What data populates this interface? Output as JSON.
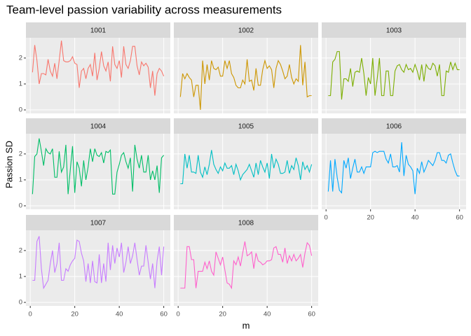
{
  "title": "Team-level passion variability across measurements",
  "x_label": "m",
  "y_label": "Passion SD",
  "chart_data": [
    {
      "type": "line",
      "title": "1001",
      "color": "#F8766D",
      "xlim": [
        -1.95,
        62.95
      ],
      "xticks": [
        0,
        20,
        40,
        60
      ],
      "ylim": [
        -0.135,
        2.78
      ],
      "yticks": [
        0,
        1,
        2
      ],
      "grid": true,
      "x": [
        1,
        2,
        3,
        4,
        5,
        6,
        7,
        8,
        9,
        10,
        11,
        12,
        13,
        14,
        15,
        16,
        17,
        18,
        19,
        20,
        21,
        22,
        23,
        24,
        25,
        26,
        27,
        28,
        29,
        30,
        31,
        32,
        33,
        34,
        35,
        36,
        37,
        38,
        39,
        40,
        41,
        42,
        43,
        44,
        45,
        46,
        47,
        48,
        49,
        50,
        51,
        52,
        53,
        54,
        55,
        56,
        57,
        58,
        59,
        60
      ],
      "values": [
        1.45,
        2.5,
        1.9,
        1.0,
        1.4,
        1.4,
        1.35,
        1.95,
        1.5,
        1.3,
        1.8,
        1.2,
        1.9,
        2.67,
        1.9,
        1.85,
        1.85,
        1.9,
        2.05,
        1.8,
        1.75,
        0.85,
        1.5,
        1.6,
        1.2,
        1.6,
        1.75,
        1.3,
        2.2,
        1.15,
        1.6,
        2.25,
        1.7,
        1.5,
        1.85,
        1.1,
        2.45,
        1.75,
        1.6,
        1.9,
        1.25,
        2.45,
        1.75,
        1.6,
        1.9,
        2.45,
        2.45,
        1.7,
        1.35,
        1.85,
        1.7,
        1.8,
        1.65,
        0.85,
        1.5,
        0.55,
        1.4,
        1.6,
        1.5,
        1.3
      ]
    },
    {
      "type": "line",
      "title": "1002",
      "color": "#CD9600",
      "xlim": [
        -1.95,
        62.95
      ],
      "xticks": [
        0,
        20,
        40,
        60
      ],
      "ylim": [
        -0.135,
        2.78
      ],
      "yticks": [
        0,
        1,
        2
      ],
      "grid": true,
      "x": [
        1,
        2,
        3,
        4,
        5,
        6,
        7,
        8,
        9,
        10,
        11,
        12,
        13,
        14,
        15,
        16,
        17,
        18,
        19,
        20,
        21,
        22,
        23,
        24,
        25,
        26,
        27,
        28,
        29,
        30,
        31,
        32,
        33,
        34,
        35,
        36,
        37,
        38,
        39,
        40,
        41,
        42,
        43,
        44,
        45,
        46,
        47,
        48,
        49,
        50,
        51,
        52,
        53,
        54,
        55,
        56,
        57,
        58,
        59,
        60
      ],
      "values": [
        0.5,
        1.4,
        1.2,
        1.4,
        1.25,
        1.15,
        0.5,
        0.95,
        0.95,
        0.0,
        1.9,
        1.0,
        1.75,
        1.15,
        1.9,
        1.6,
        1.55,
        1.65,
        1.3,
        1.3,
        1.9,
        1.6,
        1.9,
        1.4,
        1.25,
        0.95,
        0.85,
        0.85,
        1.15,
        1.0,
        1.95,
        1.1,
        1.15,
        0.75,
        1.6,
        0.95,
        0.95,
        1.55,
        1.9,
        1.6,
        1.7,
        1.55,
        0.85,
        1.6,
        1.9,
        1.75,
        1.5,
        1.2,
        1.3,
        1.75,
        1.25,
        1.0,
        1.2,
        1.1,
        2.5,
        0.95,
        1.85,
        0.5,
        0.55,
        0.55
      ]
    },
    {
      "type": "line",
      "title": "1003",
      "color": "#7CAE00",
      "xlim": [
        -1.95,
        62.95
      ],
      "xticks": [
        0,
        20,
        40,
        60
      ],
      "ylim": [
        -0.135,
        2.78
      ],
      "yticks": [
        0,
        1,
        2
      ],
      "grid": true,
      "x": [
        1,
        2,
        3,
        4,
        5,
        6,
        7,
        8,
        9,
        10,
        11,
        12,
        13,
        14,
        15,
        16,
        17,
        18,
        19,
        20,
        21,
        22,
        23,
        24,
        25,
        26,
        27,
        28,
        29,
        30,
        31,
        32,
        33,
        34,
        35,
        36,
        37,
        38,
        39,
        40,
        41,
        42,
        43,
        44,
        45,
        46,
        47,
        48,
        49,
        50,
        51,
        52,
        53,
        54,
        55,
        56,
        57,
        58,
        59,
        60
      ],
      "values": [
        0.55,
        0.55,
        1.85,
        1.95,
        2.25,
        2.25,
        0.4,
        1.2,
        1.2,
        1.1,
        1.6,
        0.9,
        1.45,
        1.5,
        1.45,
        2.0,
        1.4,
        0.55,
        1.25,
        1.0,
        2.0,
        0.55,
        1.2,
        2.0,
        0.55,
        0.55,
        1.5,
        1.5,
        0.55,
        0.55,
        1.5,
        1.7,
        1.75,
        1.55,
        1.45,
        1.75,
        1.55,
        1.6,
        1.45,
        1.75,
        1.5,
        1.15,
        1.75,
        1.1,
        1.75,
        1.6,
        1.55,
        1.8,
        1.7,
        1.3,
        1.75,
        0.55,
        0.55,
        1.5,
        1.45,
        1.85,
        1.55,
        1.8,
        1.55,
        1.55
      ]
    },
    {
      "type": "line",
      "title": "1004",
      "color": "#00BE67",
      "xlim": [
        -1.95,
        62.95
      ],
      "xticks": [
        0,
        20,
        40,
        60
      ],
      "ylim": [
        -0.135,
        2.78
      ],
      "yticks": [
        0,
        1,
        2
      ],
      "grid": true,
      "x": [
        1,
        2,
        3,
        4,
        5,
        6,
        7,
        8,
        9,
        10,
        11,
        12,
        13,
        14,
        15,
        16,
        17,
        18,
        19,
        20,
        21,
        22,
        23,
        24,
        25,
        26,
        27,
        28,
        29,
        30,
        31,
        32,
        33,
        34,
        35,
        36,
        37,
        38,
        39,
        40,
        41,
        42,
        43,
        44,
        45,
        46,
        47,
        48,
        49,
        50,
        51,
        52,
        53,
        54,
        55,
        56,
        57,
        58,
        59,
        60
      ],
      "values": [
        0.45,
        1.9,
        2.0,
        2.6,
        2.1,
        1.55,
        2.2,
        2.05,
        2.0,
        2.2,
        1.1,
        1.1,
        2.1,
        1.3,
        1.5,
        2.35,
        0.45,
        1.4,
        2.3,
        0.5,
        1.7,
        1.45,
        0.75,
        1.75,
        1.0,
        1.5,
        2.2,
        1.7,
        2.2,
        1.95,
        1.9,
        2.05,
        1.65,
        2.1,
        2.05,
        2.15,
        0.45,
        0.45,
        1.3,
        1.6,
        1.95,
        2.05,
        1.7,
        1.45,
        1.85,
        0.55,
        2.35,
        1.8,
        1.45,
        1.95,
        1.3,
        1.3,
        1.95,
        1.0,
        1.35,
        1.0,
        1.55,
        0.5,
        1.85,
        1.95
      ]
    },
    {
      "type": "line",
      "title": "1005",
      "color": "#00BFC4",
      "xlim": [
        -1.95,
        62.95
      ],
      "xticks": [
        0,
        20,
        40,
        60
      ],
      "ylim": [
        -0.135,
        2.78
      ],
      "yticks": [
        0,
        1,
        2
      ],
      "grid": true,
      "x": [
        1,
        2,
        3,
        4,
        5,
        6,
        7,
        8,
        9,
        10,
        11,
        12,
        13,
        14,
        15,
        16,
        17,
        18,
        19,
        20,
        21,
        22,
        23,
        24,
        25,
        26,
        27,
        28,
        29,
        30,
        31,
        32,
        33,
        34,
        35,
        36,
        37,
        38,
        39,
        40,
        41,
        42,
        43,
        44,
        45,
        46,
        47,
        48,
        49,
        50,
        51,
        52,
        53,
        54,
        55,
        56,
        57,
        58,
        59,
        60
      ],
      "values": [
        0.85,
        0.85,
        2.0,
        1.45,
        1.95,
        1.3,
        1.3,
        1.25,
        1.95,
        1.3,
        1.1,
        1.5,
        1.2,
        1.6,
        2.15,
        1.6,
        1.4,
        1.25,
        1.5,
        1.35,
        1.65,
        1.45,
        1.45,
        1.55,
        1.2,
        1.6,
        1.35,
        1.0,
        1.2,
        1.3,
        1.4,
        1.6,
        1.35,
        1.1,
        1.65,
        1.2,
        1.75,
        1.5,
        1.3,
        1.65,
        1.05,
        2.0,
        1.45,
        1.8,
        1.6,
        1.25,
        1.25,
        1.3,
        1.75,
        1.25,
        1.55,
        1.4,
        1.85,
        1.55,
        1.0,
        1.7,
        1.4,
        1.55,
        1.3,
        1.6
      ]
    },
    {
      "type": "line",
      "title": "1006",
      "color": "#00A9FF",
      "xlim": [
        -1.95,
        62.95
      ],
      "xticks": [
        0,
        20,
        40,
        60
      ],
      "ylim": [
        -0.135,
        2.78
      ],
      "yticks": [
        0,
        1,
        2
      ],
      "grid": true,
      "x": [
        1,
        2,
        3,
        4,
        5,
        6,
        7,
        8,
        9,
        10,
        11,
        12,
        13,
        14,
        15,
        16,
        17,
        18,
        19,
        20,
        21,
        22,
        23,
        24,
        25,
        26,
        27,
        28,
        29,
        30,
        31,
        32,
        33,
        34,
        35,
        36,
        37,
        38,
        39,
        40,
        41,
        42,
        43,
        44,
        45,
        46,
        47,
        48,
        49,
        50,
        51,
        52,
        53,
        54,
        55,
        56,
        57,
        58,
        59,
        60
      ],
      "values": [
        0.55,
        1.75,
        0.55,
        1.8,
        1.1,
        0.6,
        0.5,
        1.75,
        1.45,
        1.85,
        1.05,
        1.45,
        1.8,
        1.3,
        1.3,
        1.5,
        1.25,
        1.5,
        1.5,
        1.5,
        2.05,
        2.1,
        2.05,
        2.1,
        2.1,
        2.1,
        1.8,
        1.65,
        2.0,
        1.5,
        1.5,
        1.55,
        1.3,
        2.45,
        1.15,
        1.95,
        1.6,
        1.5,
        1.35,
        0.45,
        1.45,
        1.25,
        1.7,
        1.3,
        1.5,
        1.75,
        1.65,
        1.55,
        1.75,
        2.05,
        2.05,
        1.75,
        1.75,
        1.65,
        1.95,
        2.0,
        1.65,
        1.35,
        1.15,
        1.15
      ]
    },
    {
      "type": "line",
      "title": "1007",
      "color": "#C77CFF",
      "xlim": [
        -1.95,
        62.95
      ],
      "xticks": [
        0,
        20,
        40,
        60
      ],
      "ylim": [
        -0.135,
        2.78
      ],
      "yticks": [
        0,
        1,
        2
      ],
      "grid": true,
      "x": [
        1,
        2,
        3,
        4,
        5,
        6,
        7,
        8,
        9,
        10,
        11,
        12,
        13,
        14,
        15,
        16,
        17,
        18,
        19,
        20,
        21,
        22,
        23,
        24,
        25,
        26,
        27,
        28,
        29,
        30,
        31,
        32,
        33,
        34,
        35,
        36,
        37,
        38,
        39,
        40,
        41,
        42,
        43,
        44,
        45,
        46,
        47,
        48,
        49,
        50,
        51,
        52,
        53,
        54,
        55,
        56,
        57,
        58,
        59,
        60
      ],
      "values": [
        0.85,
        0.85,
        2.35,
        2.55,
        1.3,
        0.55,
        0.7,
        0.85,
        1.5,
        2.0,
        1.15,
        1.5,
        2.3,
        0.85,
        0.85,
        1.3,
        1.2,
        1.45,
        1.6,
        1.7,
        2.4,
        2.35,
        1.9,
        1.6,
        0.8,
        1.5,
        0.75,
        1.6,
        0.8,
        0.75,
        1.85,
        0.75,
        1.5,
        0.8,
        2.3,
        1.25,
        2.2,
        1.5,
        2.1,
        1.75,
        2.3,
        1.15,
        1.55,
        2.15,
        1.5,
        1.8,
        2.3,
        1.65,
        1.05,
        1.4,
        1.4,
        2.2,
        1.55,
        0.9,
        1.5,
        0.55,
        1.6,
        2.15,
        1.05,
        2.15
      ]
    },
    {
      "type": "line",
      "title": "1008",
      "color": "#FF61CC",
      "xlim": [
        -1.95,
        62.95
      ],
      "xticks": [
        0,
        20,
        40,
        60
      ],
      "ylim": [
        -0.135,
        2.78
      ],
      "yticks": [
        0,
        1,
        2
      ],
      "grid": true,
      "x": [
        1,
        2,
        3,
        4,
        5,
        6,
        7,
        8,
        9,
        10,
        11,
        12,
        13,
        14,
        15,
        16,
        17,
        18,
        19,
        20,
        21,
        22,
        23,
        24,
        25,
        26,
        27,
        28,
        29,
        30,
        31,
        32,
        33,
        34,
        35,
        36,
        37,
        38,
        39,
        40,
        41,
        42,
        43,
        44,
        45,
        46,
        47,
        48,
        49,
        50,
        51,
        52,
        53,
        54,
        55,
        56,
        57,
        58,
        59,
        60
      ],
      "values": [
        0.55,
        0.55,
        0.55,
        2.15,
        2.15,
        1.65,
        1.65,
        0.55,
        1.2,
        1.2,
        1.2,
        1.55,
        1.3,
        1.6,
        1.2,
        1.05,
        1.95,
        1.7,
        1.45,
        1.75,
        1.25,
        0.75,
        0.7,
        0.55,
        1.6,
        1.45,
        1.75,
        1.4,
        1.9,
        2.35,
        1.8,
        1.85,
        1.95,
        1.3,
        1.9,
        1.6,
        1.55,
        1.45,
        1.5,
        1.6,
        1.6,
        1.65,
        2.1,
        2.15,
        1.85,
        1.85,
        1.55,
        2.1,
        1.5,
        1.8,
        1.6,
        1.85,
        1.6,
        1.7,
        1.85,
        1.35,
        1.9,
        2.3,
        2.2,
        1.8
      ]
    }
  ]
}
